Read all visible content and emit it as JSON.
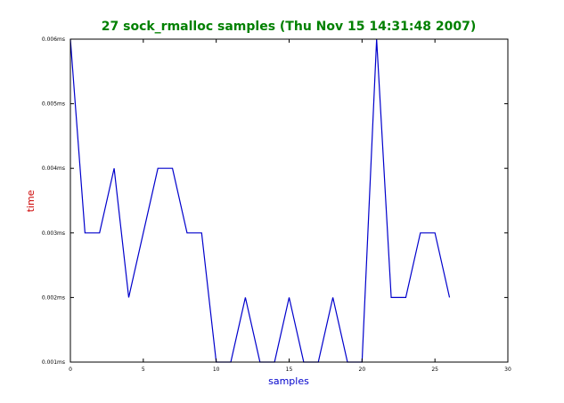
{
  "chart_data": {
    "type": "line",
    "title": "27 sock_rmalloc samples (Thu Nov 15 14:31:48 2007)",
    "xlabel": "samples",
    "ylabel": "time",
    "xlim": [
      0,
      30
    ],
    "ylim": [
      0.001,
      0.006
    ],
    "x_ticks": [
      0,
      5,
      10,
      15,
      20,
      25,
      30
    ],
    "x_tick_labels": [
      "0",
      "5",
      "10",
      "15",
      "20",
      "25",
      "30"
    ],
    "y_ticks": [
      0.001,
      0.002,
      0.003,
      0.004,
      0.005,
      0.006
    ],
    "y_tick_labels": [
      "0.001ms",
      "0.002ms",
      "0.003ms",
      "0.004ms",
      "0.005ms",
      "0.006ms"
    ],
    "grid": false,
    "legend": "none",
    "series": [
      {
        "color": "#0000cc",
        "x": [
          0,
          1,
          2,
          3,
          4,
          5,
          6,
          7,
          8,
          9,
          10,
          11,
          12,
          13,
          14,
          15,
          16,
          17,
          18,
          19,
          20,
          21,
          22,
          23,
          24,
          25,
          26
        ],
        "y": [
          0.006,
          0.003,
          0.003,
          0.004,
          0.002,
          0.003,
          0.004,
          0.004,
          0.003,
          0.003,
          0.001,
          0.001,
          0.002,
          0.001,
          0.001,
          0.002,
          0.001,
          0.001,
          0.002,
          0.001,
          0.001,
          0.006,
          0.002,
          0.002,
          0.003,
          0.003,
          0.002
        ]
      }
    ],
    "colors": {
      "title": "#008000",
      "xlabel": "#0000cc",
      "ylabel": "#cc0000",
      "axes": "#000000"
    }
  }
}
